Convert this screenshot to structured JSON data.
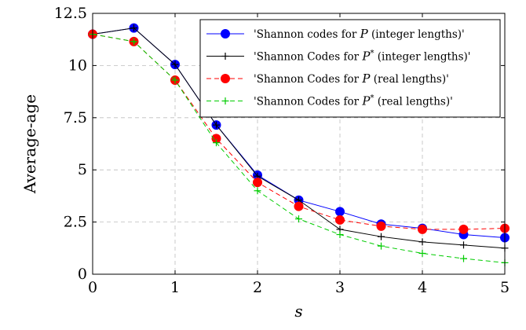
{
  "chart_data": {
    "type": "line",
    "title": "",
    "xlabel": "s",
    "ylabel": "Average-age",
    "xlim": [
      0,
      5
    ],
    "ylim": [
      0,
      12.5
    ],
    "x_ticks": [
      "0",
      "1",
      "2",
      "3",
      "4",
      "5"
    ],
    "y_ticks": [
      "0",
      "2.5",
      "5",
      "7.5",
      "10",
      "12.5"
    ],
    "grid": true,
    "legend_position": "top-right",
    "x": [
      0,
      0.5,
      1,
      1.5,
      2,
      2.5,
      3,
      3.5,
      4,
      4.5,
      5
    ],
    "series": [
      {
        "name": "'Shannon codes for P (integer lengths)'",
        "legend_prefix": "'Shannon codes for ",
        "legend_var": "P",
        "legend_sup": "",
        "legend_suffix": " (integer lengths)'",
        "color": "#0000ff",
        "dash": "solid",
        "marker": "circle",
        "values": [
          11.5,
          11.8,
          10.05,
          7.15,
          4.75,
          3.55,
          3.0,
          2.4,
          2.2,
          1.9,
          1.75
        ]
      },
      {
        "name": "'Shannon Codes for P* (integer lengths)'",
        "legend_prefix": "'Shannon Codes for ",
        "legend_var": "P",
        "legend_sup": "*",
        "legend_suffix": " (integer lengths)'",
        "color": "#000000",
        "dash": "solid",
        "marker": "plus",
        "values": [
          11.5,
          11.8,
          10.05,
          7.15,
          4.7,
          3.55,
          2.15,
          1.8,
          1.55,
          1.4,
          1.25
        ]
      },
      {
        "name": "'Shannon Codes for P (real lengths)'",
        "legend_prefix": "'Shannon Codes for ",
        "legend_var": "P",
        "legend_sup": "",
        "legend_suffix": " (real lengths)'",
        "color": "#ff0000",
        "dash": "dashed",
        "marker": "circle",
        "values": [
          11.5,
          11.15,
          9.3,
          6.5,
          4.4,
          3.25,
          2.6,
          2.3,
          2.15,
          2.15,
          2.2
        ]
      },
      {
        "name": "'Shannon Codes for P* (real lengths)'",
        "legend_prefix": "'Shannon Codes for ",
        "legend_var": "P",
        "legend_sup": "*",
        "legend_suffix": " (real lengths)'",
        "color": "#00cc00",
        "dash": "dashed",
        "marker": "plus",
        "values": [
          11.5,
          11.15,
          9.3,
          6.3,
          4.0,
          2.65,
          1.9,
          1.35,
          1.0,
          0.75,
          0.55
        ]
      }
    ]
  }
}
